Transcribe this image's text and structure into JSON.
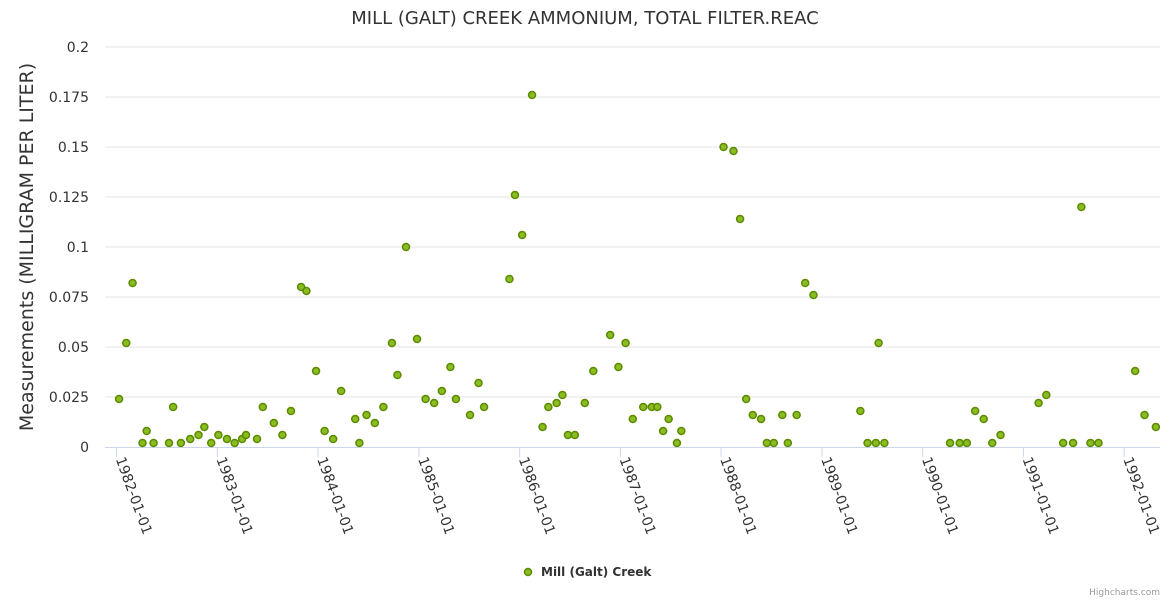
{
  "chart_data": {
    "type": "scatter",
    "title": "MILL (GALT) CREEK AMMONIUM, TOTAL FILTER.REAC",
    "ylabel": "Measurements (MILLIGRAM PER LITER)",
    "xlabel": "",
    "ylim": [
      0,
      0.2
    ],
    "yticks": [
      "0",
      "0.025",
      "0.05",
      "0.075",
      "0.1",
      "0.125",
      "0.15",
      "0.175",
      "0.2"
    ],
    "xlim": [
      "1981-11-20",
      "1992-05-10"
    ],
    "xticks": [
      "1982-01-01",
      "1983-01-01",
      "1984-01-01",
      "1985-01-01",
      "1986-01-01",
      "1987-01-01",
      "1988-01-01",
      "1989-01-01",
      "1990-01-01",
      "1991-01-01",
      "1992-01-01"
    ],
    "grid": true,
    "legend_position": "bottom-center",
    "series": [
      {
        "name": "Mill (Galt) Creek",
        "color": "#8bbc21",
        "points": [
          [
            "1982-01-10",
            0.024
          ],
          [
            "1982-02-05",
            0.052
          ],
          [
            "1982-02-28",
            0.082
          ],
          [
            "1982-04-05",
            0.002
          ],
          [
            "1982-04-20",
            0.008
          ],
          [
            "1982-05-15",
            0.002
          ],
          [
            "1982-07-10",
            0.002
          ],
          [
            "1982-07-25",
            0.02
          ],
          [
            "1982-08-22",
            0.002
          ],
          [
            "1982-09-25",
            0.004
          ],
          [
            "1982-10-25",
            0.006
          ],
          [
            "1982-11-15",
            0.01
          ],
          [
            "1982-12-10",
            0.002
          ],
          [
            "1983-01-05",
            0.006
          ],
          [
            "1983-02-05",
            0.004
          ],
          [
            "1983-03-05",
            0.002
          ],
          [
            "1983-04-01",
            0.004
          ],
          [
            "1983-04-15",
            0.006
          ],
          [
            "1983-05-25",
            0.004
          ],
          [
            "1983-06-15",
            0.02
          ],
          [
            "1983-07-25",
            0.012
          ],
          [
            "1983-08-25",
            0.006
          ],
          [
            "1983-09-25",
            0.018
          ],
          [
            "1983-11-01",
            0.08
          ],
          [
            "1983-11-20",
            0.078
          ],
          [
            "1983-12-25",
            0.038
          ],
          [
            "1984-01-25",
            0.008
          ],
          [
            "1984-02-25",
            0.004
          ],
          [
            "1984-03-25",
            0.028
          ],
          [
            "1984-05-15",
            0.014
          ],
          [
            "1984-05-30",
            0.002
          ],
          [
            "1984-06-25",
            0.016
          ],
          [
            "1984-07-25",
            0.012
          ],
          [
            "1984-08-25",
            0.02
          ],
          [
            "1984-09-25",
            0.052
          ],
          [
            "1984-10-15",
            0.036
          ],
          [
            "1984-11-15",
            0.1
          ],
          [
            "1984-12-25",
            0.054
          ],
          [
            "1985-01-25",
            0.024
          ],
          [
            "1985-02-25",
            0.022
          ],
          [
            "1985-03-25",
            0.028
          ],
          [
            "1985-04-25",
            0.04
          ],
          [
            "1985-05-15",
            0.024
          ],
          [
            "1985-07-05",
            0.016
          ],
          [
            "1985-08-05",
            0.032
          ],
          [
            "1985-08-25",
            0.02
          ],
          [
            "1985-11-25",
            0.084
          ],
          [
            "1985-12-15",
            0.126
          ],
          [
            "1986-01-10",
            0.106
          ],
          [
            "1986-02-15",
            0.176
          ],
          [
            "1986-03-25",
            0.01
          ],
          [
            "1986-04-15",
            0.02
          ],
          [
            "1986-05-15",
            0.022
          ],
          [
            "1986-06-05",
            0.026
          ],
          [
            "1986-06-25",
            0.006
          ],
          [
            "1986-07-20",
            0.006
          ],
          [
            "1986-08-25",
            0.022
          ],
          [
            "1986-09-25",
            0.038
          ],
          [
            "1986-11-25",
            0.056
          ],
          [
            "1986-12-25",
            0.04
          ],
          [
            "1987-01-20",
            0.052
          ],
          [
            "1987-02-15",
            0.014
          ],
          [
            "1987-03-25",
            0.02
          ],
          [
            "1987-04-25",
            0.02
          ],
          [
            "1987-05-15",
            0.02
          ],
          [
            "1987-06-05",
            0.008
          ],
          [
            "1987-06-25",
            0.014
          ],
          [
            "1987-07-25",
            0.002
          ],
          [
            "1987-08-10",
            0.008
          ],
          [
            "1988-01-10",
            0.15
          ],
          [
            "1988-02-15",
            0.148
          ],
          [
            "1988-03-10",
            0.114
          ],
          [
            "1988-04-01",
            0.024
          ],
          [
            "1988-04-25",
            0.016
          ],
          [
            "1988-05-25",
            0.014
          ],
          [
            "1988-06-15",
            0.002
          ],
          [
            "1988-07-10",
            0.002
          ],
          [
            "1988-08-10",
            0.016
          ],
          [
            "1988-08-30",
            0.002
          ],
          [
            "1988-10-01",
            0.016
          ],
          [
            "1988-11-01",
            0.082
          ],
          [
            "1988-12-01",
            0.076
          ],
          [
            "1989-05-20",
            0.018
          ],
          [
            "1989-06-15",
            0.002
          ],
          [
            "1989-07-15",
            0.002
          ],
          [
            "1989-07-25",
            0.052
          ],
          [
            "1989-08-15",
            0.002
          ],
          [
            "1990-04-10",
            0.002
          ],
          [
            "1990-05-15",
            0.002
          ],
          [
            "1990-06-10",
            0.002
          ],
          [
            "1990-07-10",
            0.018
          ],
          [
            "1990-08-10",
            0.014
          ],
          [
            "1990-09-10",
            0.002
          ],
          [
            "1990-10-10",
            0.006
          ],
          [
            "1991-02-25",
            0.022
          ],
          [
            "1991-03-25",
            0.026
          ],
          [
            "1991-05-25",
            0.002
          ],
          [
            "1991-06-30",
            0.002
          ],
          [
            "1991-07-30",
            0.12
          ],
          [
            "1991-09-01",
            0.002
          ],
          [
            "1991-09-30",
            0.002
          ],
          [
            "1992-02-10",
            0.038
          ],
          [
            "1992-03-15",
            0.016
          ],
          [
            "1992-04-25",
            0.01
          ]
        ]
      }
    ]
  },
  "credits": "Highcharts.com"
}
